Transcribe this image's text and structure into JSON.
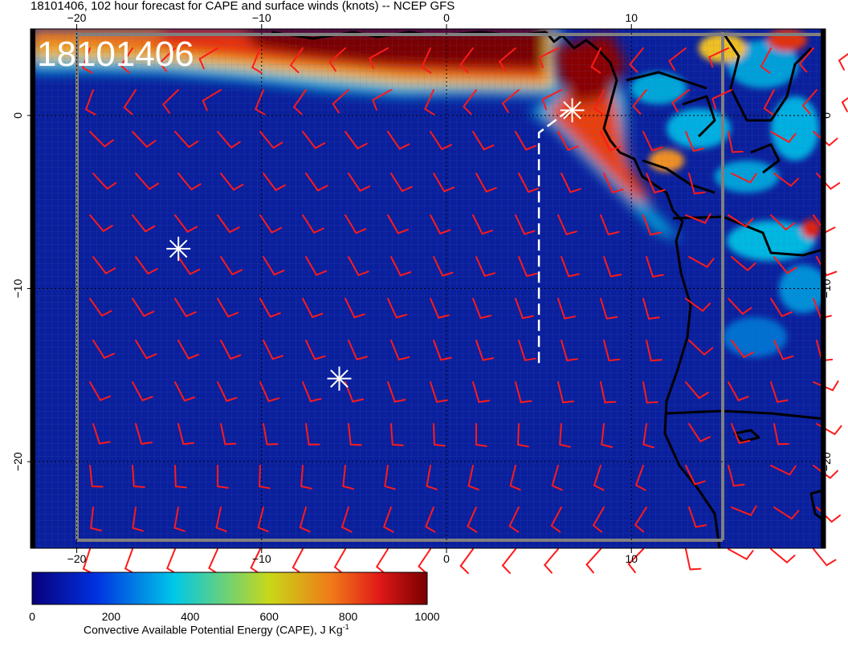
{
  "title": "18101406, 102 hour forecast for CAPE and surface winds (knots) -- NCEP GFS",
  "stamp": "18101406",
  "axes": {
    "lon_ticks": [
      {
        "value": -20,
        "label": "−20"
      },
      {
        "value": -10,
        "label": "−10"
      },
      {
        "value": 0,
        "label": "0"
      },
      {
        "value": 10,
        "label": "10"
      }
    ],
    "lat_ticks": [
      {
        "value": 0,
        "label": "0"
      },
      {
        "value": -10,
        "label": "−10"
      },
      {
        "value": -20,
        "label": "−20"
      }
    ],
    "lon_range": [
      -22.5,
      20.5
    ],
    "lat_range": [
      -25,
      5
    ]
  },
  "colorbar": {
    "label_main": "Convective Available Potential Energy (CAPE), J Kg",
    "label_sup": "-1",
    "ticks": [
      "0",
      "200",
      "400",
      "600",
      "800",
      "1000"
    ],
    "range": [
      0,
      1000
    ],
    "colors": [
      "#08007a",
      "#0030e0",
      "#00c8e8",
      "#c8d818",
      "#f07818",
      "#e01818",
      "#780000"
    ]
  },
  "markers": [
    {
      "lon": -14.5,
      "lat": -7.7
    },
    {
      "lon": -5.8,
      "lat": -15.2
    },
    {
      "lon": 6.8,
      "lat": 0.3
    }
  ],
  "track": {
    "points": [
      [
        5,
        -14.3
      ],
      [
        5,
        -1.0
      ],
      [
        6.6,
        0.3
      ]
    ]
  },
  "colors": {
    "ocean": "#0a1f9c",
    "wind_barb": "#ff1a1a",
    "coast": "#000000",
    "marker": "#ffffff",
    "box": "#808080"
  }
}
